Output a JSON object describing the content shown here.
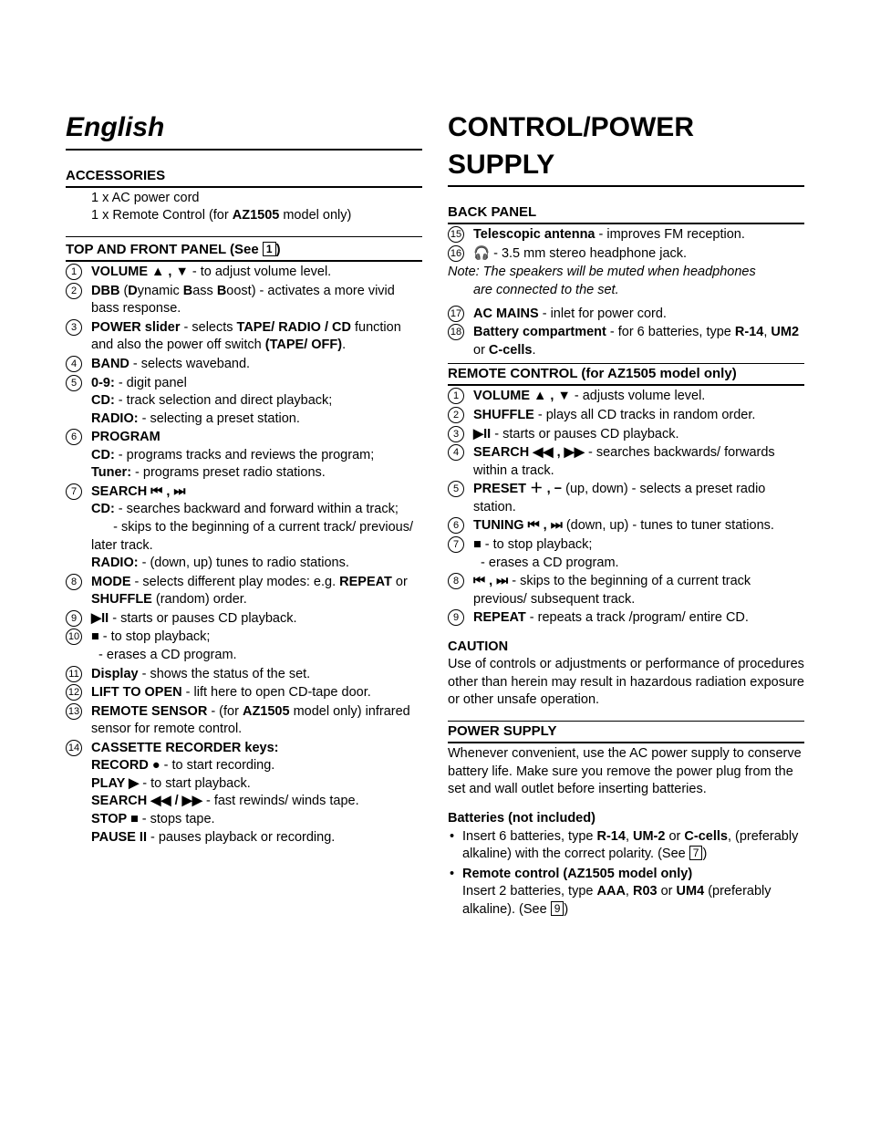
{
  "left": {
    "title": "English",
    "accessories": {
      "heading": "ACCESSORIES",
      "items": [
        "1 x AC power cord",
        "1 x Remote Control (for AZ1505 model only)"
      ]
    },
    "topfront": {
      "heading": "TOP AND FRONT PANEL (See [1])",
      "items": [
        {
          "n": "1",
          "html": "<b>VOLUME ▲ , ▼</b> - to adjust volume level."
        },
        {
          "n": "2",
          "html": "<b>DBB</b> (<b>D</b>ynamic <b>B</b>ass <b>B</b>oost) - activates a more vivid bass response."
        },
        {
          "n": "3",
          "html": "<b>POWER slider</b> - selects <b>TAPE/ RADIO / CD</b> function and also the power off switch <b>(TAPE/ OFF)</b>."
        },
        {
          "n": "4",
          "html": "<b>BAND</b> - selects waveband."
        },
        {
          "n": "5",
          "html": "<b>0-9:</b> - digit panel",
          "sub": [
            "<b>CD:</b> - track selection and direct playback;",
            "<b>RADIO:</b> - selecting a preset station."
          ]
        },
        {
          "n": "6",
          "html": "<b>PROGRAM</b>",
          "sub": [
            "<b>CD:</b> - programs tracks and reviews the program;",
            "<b>Tuner:</b> - programs preset radio stations."
          ]
        },
        {
          "n": "7",
          "html": "<b>SEARCH ⏮ , ⏭</b>",
          "sub": [
            "<b>CD:</b> - searches backward and forward within a track;",
            "&nbsp;&nbsp;&nbsp;&nbsp;&nbsp;&nbsp;- skips to the beginning of a current track/ previous/ later track.",
            "<b>RADIO:</b> - (down, up) tunes to radio stations."
          ]
        },
        {
          "n": "8",
          "html": "<b>MODE</b> - selects different play modes: e.g. <b>REPEAT</b> or <b>SHUFFLE</b> (random) order."
        },
        {
          "n": "9",
          "html": "<b>▶II</b> - starts or pauses CD playback."
        },
        {
          "n": "10",
          "html": "<b>■</b> - to stop playback;",
          "sub": [
            "&nbsp;&nbsp;- erases a CD program."
          ]
        },
        {
          "n": "11",
          "html": "<b>Display</b> - shows the status of the set."
        },
        {
          "n": "12",
          "html": "<b>LIFT TO OPEN</b> - lift here to open CD-tape door."
        },
        {
          "n": "13",
          "html": "<b>REMOTE SENSOR</b> - (for <b>AZ1505</b> model only) infrared sensor for remote control."
        },
        {
          "n": "14",
          "html": "<b>CASSETTE RECORDER keys:</b>",
          "sub": [
            "<b>RECORD ●</b> - to start recording.",
            "<b>PLAY ▶</b> - to start playback.",
            "<b>SEARCH ◀◀ / ▶▶</b> - fast rewinds/ winds tape.",
            "<b>STOP ■</b> - stops tape.",
            "<b>PAUSE II</b> - pauses playback or recording."
          ]
        }
      ]
    }
  },
  "right": {
    "title": "CONTROL/POWER SUPPLY",
    "back": {
      "heading": "BACK PANEL",
      "items": [
        {
          "n": "15",
          "html": "<b>Telescopic antenna</b> - improves FM reception."
        },
        {
          "n": "16",
          "html": "🎧 - 3.5 mm stereo headphone jack."
        }
      ],
      "note": "Note: The speakers will be muted when headphones are connected to the set.",
      "items2": [
        {
          "n": "17",
          "html": "<b>AC MAINS</b> - inlet for power cord."
        },
        {
          "n": "18",
          "html": "<b>Battery compartment</b> - for 6 batteries, type <b>R-14</b>, <b>UM2</b> or <b>C-cells</b>."
        }
      ]
    },
    "remote": {
      "heading": "REMOTE CONTROL (for AZ1505 model only)",
      "items": [
        {
          "n": "1",
          "html": "<b>VOLUME ▲ , ▼</b> - adjusts volume level."
        },
        {
          "n": "2",
          "html": "<b>SHUFFLE</b> - plays all CD tracks in random order."
        },
        {
          "n": "3",
          "html": "<b>▶II</b> - starts or pauses CD playback."
        },
        {
          "n": "4",
          "html": "<b>SEARCH ◀◀ , ▶▶</b> - searches backwards/ forwards within a track."
        },
        {
          "n": "5",
          "html": "<b>PRESET ＋ , −</b> (up, down) - selects a preset radio station."
        },
        {
          "n": "6",
          "html": "<b>TUNING ⏮ , ⏭</b> (down, up) - tunes to tuner stations."
        },
        {
          "n": "7",
          "html": "<b>■</b> - to stop playback;",
          "sub": [
            "&nbsp;&nbsp;- erases a CD program."
          ]
        },
        {
          "n": "8",
          "html": "<b>⏮ , ⏭</b> - skips to the beginning of a current track previous/ subsequent track."
        },
        {
          "n": "9",
          "html": "<b>REPEAT</b> - repeats a track /program/ entire CD."
        }
      ]
    },
    "caution": {
      "heading": "CAUTION",
      "body": "Use of controls or adjustments or performance of procedures other than herein may result in hazardous radiation exposure or other unsafe operation."
    },
    "power": {
      "heading": "POWER SUPPLY",
      "body": "Whenever convenient, use the AC power supply to conserve battery life. Make sure you remove the power plug from the set and wall outlet before inserting batteries.",
      "batt_heading": "Batteries (not included)",
      "bullets": [
        "Insert 6 batteries, type <b>R-14</b>, <b>UM-2</b> or <b>C-cells</b>, (preferably alkaline) with the correct polarity. (See <span class='boxnum'>7</span>)",
        "<b>Remote control (AZ1505 model only)</b><br>Insert 2 batteries, type <b>AAA</b>, <b>R03</b> or <b>UM4</b> (preferably alkaline). (See <span class='boxnum'>9</span>)"
      ]
    }
  }
}
